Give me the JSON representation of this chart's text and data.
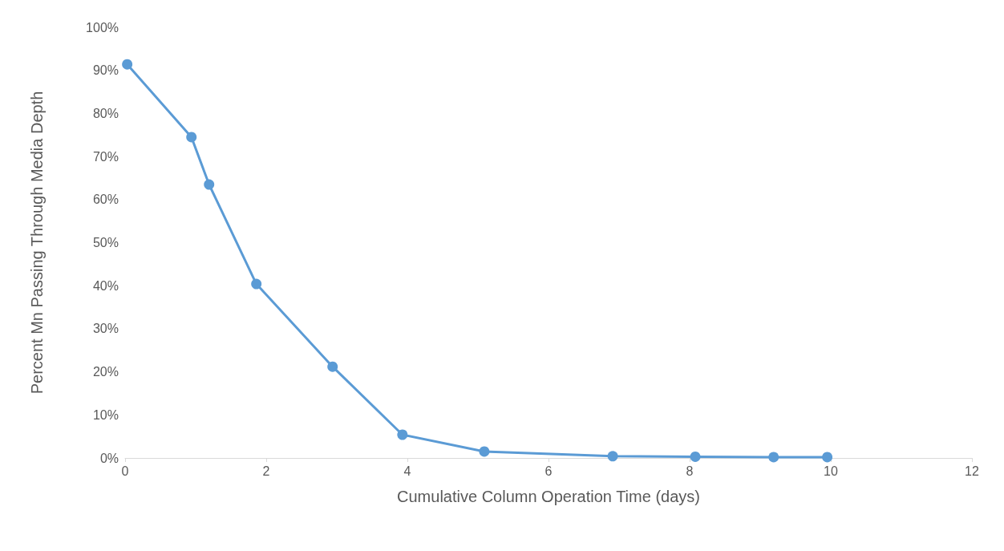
{
  "chart_data": {
    "type": "line",
    "xlabel": "Cumulative Column Operation Time (days)",
    "ylabel": "Percent Mn Passing Through Media Depth",
    "x": [
      0.03,
      0.94,
      1.19,
      1.86,
      2.94,
      3.93,
      5.09,
      6.91,
      8.08,
      9.19,
      9.95
    ],
    "series": [
      {
        "color": "#5b9bd5",
        "values": [
          91.4,
          74.5,
          63.5,
          40.4,
          21.2,
          5.4,
          1.5,
          0.4,
          0.3,
          0.2,
          0.2
        ]
      }
    ],
    "xlim": [
      0,
      12
    ],
    "xticks": [
      0,
      2,
      4,
      6,
      8,
      10,
      12
    ],
    "ylim": [
      0,
      100
    ],
    "yticks": [
      {
        "value": 0,
        "label": "0%"
      },
      {
        "value": 10,
        "label": "10%"
      },
      {
        "value": 20,
        "label": "20%"
      },
      {
        "value": 30,
        "label": "30%"
      },
      {
        "value": 40,
        "label": "40%"
      },
      {
        "value": 50,
        "label": "50%"
      },
      {
        "value": 60,
        "label": "60%"
      },
      {
        "value": 70,
        "label": "70%"
      },
      {
        "value": 80,
        "label": "80%"
      },
      {
        "value": 90,
        "label": "90%"
      },
      {
        "value": 100,
        "label": "100%"
      }
    ],
    "grid": false,
    "marker": "circle",
    "line_style": "solid"
  }
}
